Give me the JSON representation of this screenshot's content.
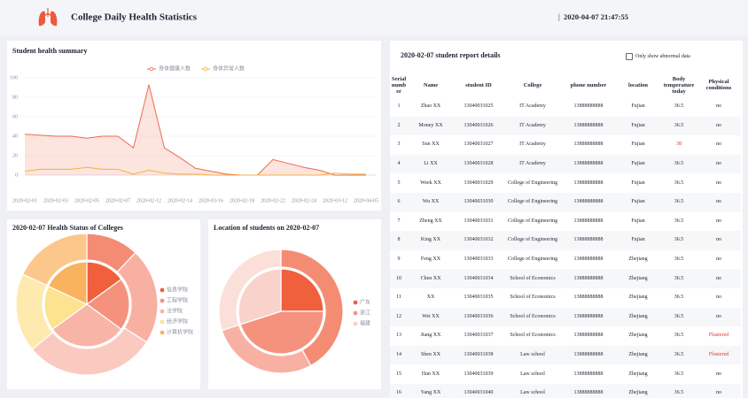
{
  "header": {
    "title": "College Daily Health Statistics",
    "datetime": "2020-04-07 21:47:55"
  },
  "chart_data": [
    {
      "type": "line",
      "title": "Student health summary",
      "categories": [
        "2020-02-01",
        null,
        "2020-02-03",
        null,
        "2020-02-05",
        null,
        "2020-02-07",
        null,
        "2020-02-12",
        null,
        "2020-02-14",
        null,
        "2020-03-16",
        null,
        "2020-02-18",
        null,
        "2020-02-22",
        null,
        "2020-02-24",
        null,
        "2020-03-12",
        null,
        "2020-04-05"
      ],
      "series": [
        {
          "name": "身体健康人数",
          "color": "#ee6a50",
          "values": [
            42,
            41,
            40,
            40,
            38,
            40,
            40,
            28,
            93,
            28,
            18,
            7,
            4,
            1,
            0,
            0,
            16,
            12,
            8,
            5,
            0,
            0,
            0
          ]
        },
        {
          "name": "身体异常人数",
          "color": "#f5b335",
          "values": [
            4,
            6,
            6,
            6,
            8,
            6,
            6,
            1,
            5,
            2,
            1,
            1,
            0,
            0,
            0,
            0,
            0,
            0,
            0,
            0,
            2,
            1,
            1
          ]
        }
      ],
      "ylim": [
        0,
        100
      ],
      "yticks": [
        0,
        20,
        40,
        60,
        80,
        100
      ],
      "grid": true,
      "legend": "top"
    },
    {
      "type": "pie",
      "title": "2020-02-07 Health Status of Colleges",
      "categories": [
        "信息学院",
        "工程学院",
        "法学院",
        "经济学院",
        "计算机学院"
      ],
      "colors": [
        "#f0603d",
        "#f5927e",
        "#f8b5a7",
        "#fde28f",
        "#f9b25d"
      ],
      "series": [
        {
          "values": [
            15,
            20,
            30,
            17,
            18
          ]
        },
        {
          "values": [
            12,
            22,
            30,
            18,
            18
          ]
        }
      ],
      "legend": "right"
    },
    {
      "type": "pie",
      "title": "Location of students on 2020-02-07",
      "categories": [
        "广东",
        "浙江",
        "福建"
      ],
      "colors": [
        "#f0603d",
        "#f5927e",
        "#f9d3cb"
      ],
      "series": [
        {
          "values": [
            25,
            45,
            30
          ]
        },
        {
          "values": [
            42,
            28,
            30
          ]
        }
      ],
      "legend": "right"
    }
  ],
  "table": {
    "title": "2020-02-07 student report details",
    "filter": "Only show abnormal data",
    "columns": [
      "Serial number",
      "Name",
      "student ID",
      "College",
      "phone number",
      "location",
      "Body temperature today",
      "Physical conditions"
    ],
    "rows": [
      [
        "1",
        "Zhao XX",
        "13040031025",
        "IT Academy",
        "13888888888",
        "Fujian",
        "36.5",
        "no"
      ],
      [
        "2",
        "Money XX",
        "13040031026",
        "IT Academy",
        "13888888888",
        "Fujian",
        "36.5",
        "no"
      ],
      [
        "3",
        "Sun XX",
        "13040031027",
        "IT Academy",
        "13888888888",
        "Fujian",
        "38",
        "no"
      ],
      [
        "4",
        "Li XX",
        "13040031028",
        "IT Academy",
        "13888888888",
        "Fujian",
        "36.5",
        "no"
      ],
      [
        "5",
        "Week XX",
        "13040031029",
        "College of Engineering",
        "13888888888",
        "Fujian",
        "36.5",
        "no"
      ],
      [
        "6",
        "Wu XX",
        "13040031030",
        "College of Engineering",
        "13888888888",
        "Fujian",
        "36.5",
        "no"
      ],
      [
        "7",
        "Zheng XX",
        "13040031031",
        "College of Engineering",
        "13888888888",
        "Fujian",
        "36.5",
        "no"
      ],
      [
        "8",
        "King XX",
        "13040031032",
        "College of Engineering",
        "13888888888",
        "Fujian",
        "36.5",
        "no"
      ],
      [
        "9",
        "Feng XX",
        "13040031033",
        "College of Engineering",
        "13888888888",
        "Zhejiang",
        "36.5",
        "no"
      ],
      [
        "10",
        "Chen XX",
        "13040031034",
        "School of Economics",
        "13888888888",
        "Zhejiang",
        "36.5",
        "no"
      ],
      [
        "11",
        "XX",
        "13040031035",
        "School of Economics",
        "13888888888",
        "Zhejiang",
        "36.5",
        "no"
      ],
      [
        "12",
        "Wei XX",
        "13040031036",
        "School of Economics",
        "13888888888",
        "Zhejiang",
        "36.5",
        "no"
      ],
      [
        "13",
        "Jiang XX",
        "13040031037",
        "School of Economics",
        "13888888888",
        "Zhejiang",
        "36.5",
        "Flustered"
      ],
      [
        "14",
        "Shen XX",
        "13040031038",
        "Law school",
        "13888888888",
        "Zhejiang",
        "36.5",
        "Flustered"
      ],
      [
        "15",
        "Han XX",
        "13040031039",
        "Law school",
        "13888888888",
        "Zhejiang",
        "36.5",
        "no"
      ],
      [
        "16",
        "Yang XX",
        "13040031040",
        "Law school",
        "13888888888",
        "Zhejiang",
        "36.5",
        "no"
      ]
    ],
    "highlight_color": "#e5322d",
    "highlighted_cells": [
      [
        2,
        6
      ],
      [
        12,
        7
      ],
      [
        13,
        7
      ]
    ]
  }
}
